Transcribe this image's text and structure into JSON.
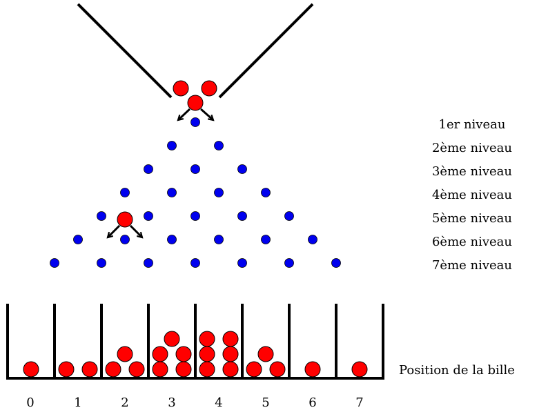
{
  "levels": [
    "1er niveau",
    "2ème niveau",
    "3ème niveau",
    "4ème niveau",
    "5ème niveau",
    "6ème niveau",
    "7ème niveau"
  ],
  "bins": [
    "0",
    "1",
    "2",
    "3",
    "4",
    "5",
    "6",
    "7"
  ],
  "bin_counts": [
    1,
    2,
    3,
    5,
    6,
    3,
    1,
    1
  ],
  "position_label": "Position de la bille",
  "colors": {
    "peg": "#0000ee",
    "ball": "#ff0000",
    "line": "#000000"
  }
}
